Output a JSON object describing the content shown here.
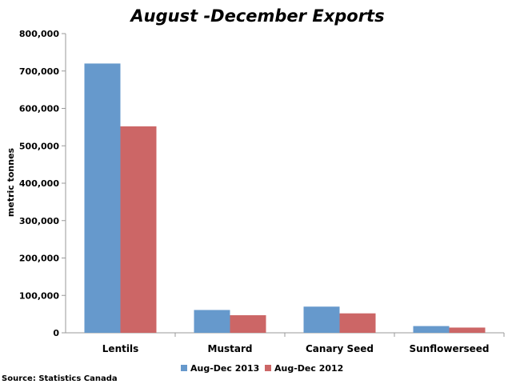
{
  "chart_data": {
    "type": "bar",
    "title": "August -December Exports",
    "xlabel": "",
    "ylabel": "metric tonnes",
    "categories": [
      "Lentils",
      "Mustard",
      "Canary Seed",
      "Sunflowerseed"
    ],
    "series": [
      {
        "name": "Aug-Dec 2013",
        "color": "#6699CC",
        "values": [
          720000,
          61000,
          70000,
          18000
        ]
      },
      {
        "name": "Aug-Dec 2012",
        "color": "#CC6666",
        "values": [
          552000,
          47000,
          52000,
          14000
        ]
      }
    ],
    "ylim": [
      0,
      800000
    ],
    "yticks": [
      0,
      100000,
      200000,
      300000,
      400000,
      500000,
      600000,
      700000,
      800000
    ],
    "ytick_labels": [
      "0",
      "100,000",
      "200,000",
      "300,000",
      "400,000",
      "500,000",
      "600,000",
      "700,000",
      "800,000"
    ],
    "grid": false,
    "legend_position": "bottom",
    "source": "Source: Statistics Canada"
  }
}
